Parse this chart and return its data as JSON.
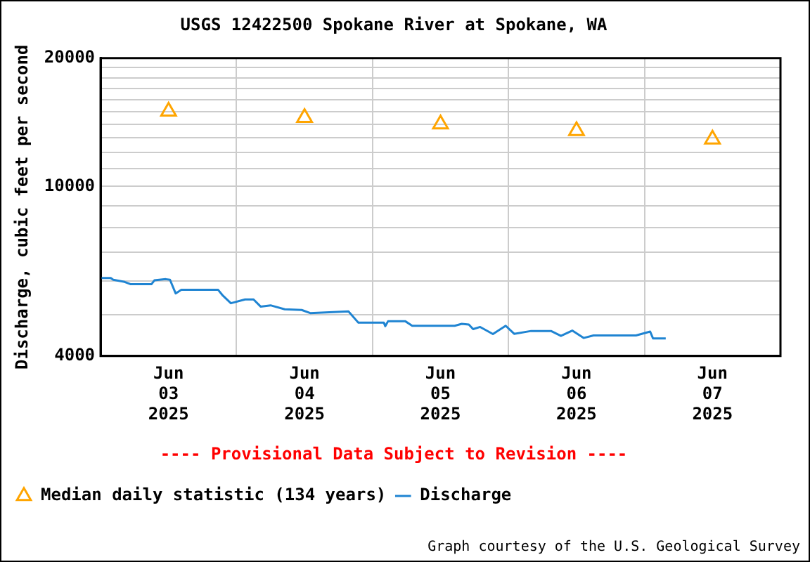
{
  "chart_data": {
    "type": "line",
    "title": "USGS 12422500 Spokane River at Spokane, WA",
    "ylabel": "Discharge, cubic feet per second",
    "log": "y",
    "grid": true,
    "legend": "bottom",
    "xlim": [
      "2025-06-03T00:00",
      "2025-06-08T00:00"
    ],
    "xticks": [
      {
        "value": "2025-06-03T12:00",
        "label": "Jun\n03\n2025"
      },
      {
        "value": "2025-06-04T00:00",
        "label": null
      },
      {
        "value": "2025-06-04T12:00",
        "label": "Jun\n04\n2025"
      },
      {
        "value": "2025-06-05T00:00",
        "label": null
      },
      {
        "value": "2025-06-05T12:00",
        "label": "Jun\n05\n2025"
      },
      {
        "value": "2025-06-06T00:00",
        "label": null
      },
      {
        "value": "2025-06-06T12:00",
        "label": "Jun\n06\n2025"
      },
      {
        "value": "2025-06-07T00:00",
        "label": null
      },
      {
        "value": "2025-06-07T12:00",
        "label": "Jun\n07\n2025"
      }
    ],
    "ylim": [
      4000,
      20000
    ],
    "yticks": [
      4000,
      {
        "value": 5000,
        "label": null
      },
      {
        "value": 6000,
        "label": null
      },
      {
        "value": 7000,
        "label": null
      },
      {
        "value": 8000,
        "label": null
      },
      {
        "value": 9000,
        "label": null
      },
      10000,
      {
        "value": 11000,
        "label": null
      },
      {
        "value": 12000,
        "label": null
      },
      {
        "value": 13000,
        "label": null
      },
      {
        "value": 14000,
        "label": null
      },
      {
        "value": 15000,
        "label": null
      },
      {
        "value": 16000,
        "label": null
      },
      {
        "value": 17000,
        "label": null
      },
      {
        "value": 18000,
        "label": null
      },
      {
        "value": 19000,
        "label": null
      },
      20000
    ],
    "annotations": [
      "---- Provisional Data Subject to Revision ----",
      "Graph courtesy of the U.S. Geological Survey"
    ],
    "series": [
      {
        "name": "Median daily statistic (134 years)",
        "type": "scatter",
        "marker": "triangle",
        "color": "#ffa500",
        "x": [
          "2025-06-03T12:00",
          "2025-06-04T12:00",
          "2025-06-05T12:00",
          "2025-06-06T12:00",
          "2025-06-07T12:00"
        ],
        "values": [
          15000,
          14500,
          14000,
          13500,
          12900
        ]
      },
      {
        "name": "Discharge",
        "type": "line",
        "marker": "none",
        "color": "#1f84d2",
        "x": [
          "2025-06-03T00:00",
          "2025-06-03T01:45",
          "2025-06-03T02:15",
          "2025-06-03T04:15",
          "2025-06-03T05:15",
          "2025-06-03T09:00",
          "2025-06-03T09:30",
          "2025-06-03T11:30",
          "2025-06-03T12:15",
          "2025-06-03T13:15",
          "2025-06-03T14:15",
          "2025-06-03T20:45",
          "2025-06-03T21:30",
          "2025-06-03T23:00",
          "2025-06-04T01:30",
          "2025-06-04T03:00",
          "2025-06-04T04:15",
          "2025-06-04T06:00",
          "2025-06-04T08:30",
          "2025-06-04T11:30",
          "2025-06-04T13:00",
          "2025-06-04T19:45",
          "2025-06-04T21:30",
          "2025-06-05T02:00",
          "2025-06-05T02:15",
          "2025-06-05T02:45",
          "2025-06-05T05:45",
          "2025-06-05T07:00",
          "2025-06-05T14:30",
          "2025-06-05T15:45",
          "2025-06-05T17:00",
          "2025-06-05T17:45",
          "2025-06-05T19:00",
          "2025-06-05T21:15",
          "2025-06-05T23:30",
          "2025-06-06T01:00",
          "2025-06-06T04:00",
          "2025-06-06T07:30",
          "2025-06-06T09:15",
          "2025-06-06T11:15",
          "2025-06-06T13:15",
          "2025-06-06T15:00",
          "2025-06-06T22:30",
          "2025-06-07T01:00",
          "2025-06-07T01:30",
          "2025-06-07T03:45"
        ],
        "values": [
          6100,
          6100,
          6040,
          5970,
          5900,
          5900,
          6020,
          6060,
          6040,
          5610,
          5720,
          5720,
          5560,
          5320,
          5430,
          5430,
          5225,
          5260,
          5150,
          5130,
          5045,
          5090,
          4790,
          4790,
          4700,
          4830,
          4830,
          4710,
          4710,
          4760,
          4740,
          4625,
          4680,
          4505,
          4710,
          4510,
          4580,
          4580,
          4460,
          4590,
          4410,
          4470,
          4470,
          4565,
          4400,
          4400
        ]
      }
    ]
  }
}
